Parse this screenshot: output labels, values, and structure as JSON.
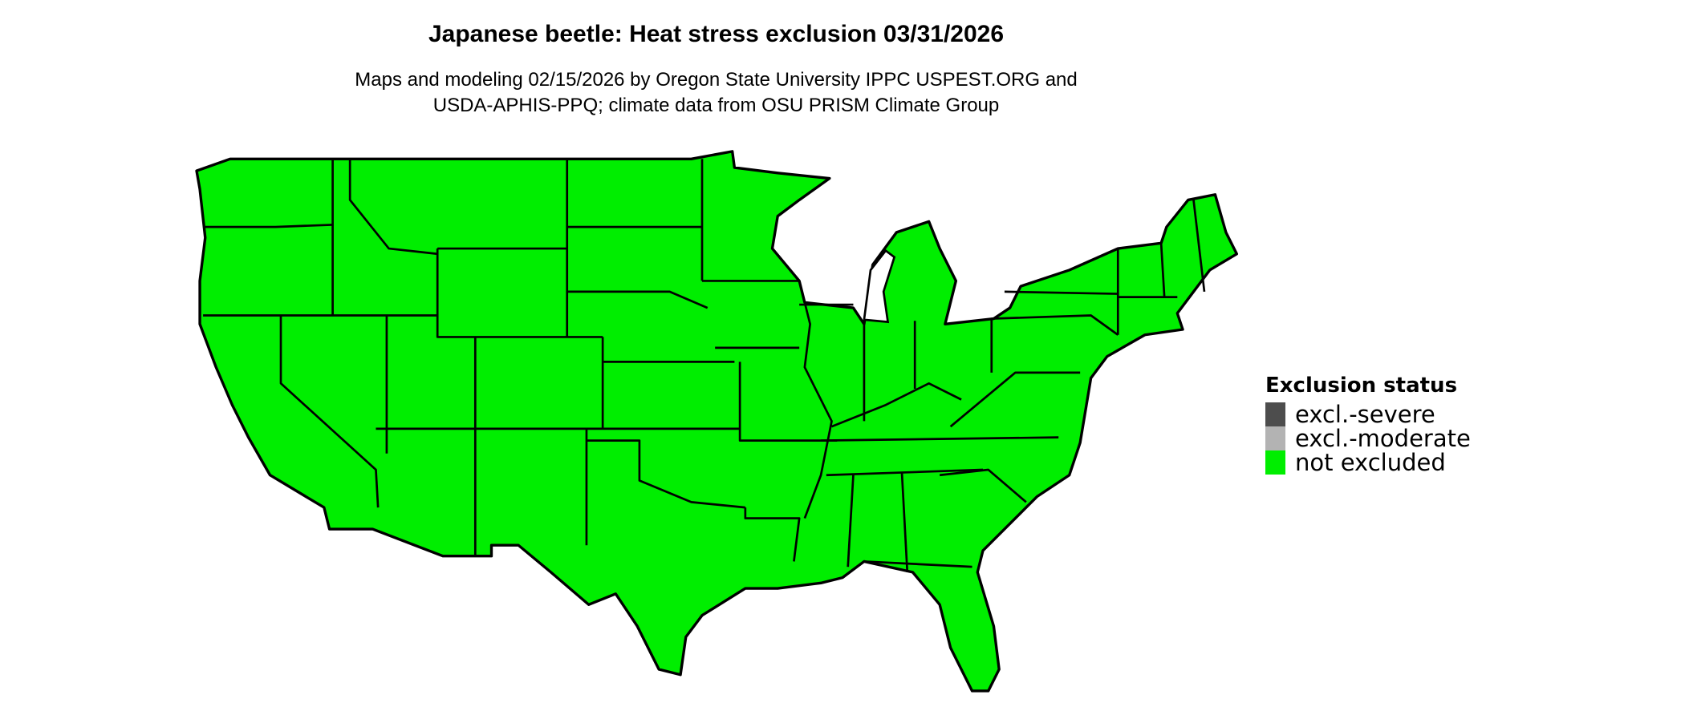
{
  "title": "Japanese beetle: Heat stress exclusion 03/31/2026",
  "subtitle_lines": [
    "Maps and modeling 02/15/2026 by Oregon State University IPPC USPEST.ORG and",
    "USDA-APHIS-PPQ; climate data from OSU PRISM Climate Group"
  ],
  "map": {
    "region": "Contiguous United States",
    "fill_color": "#00EE00",
    "border_color": "#000000",
    "status_shown": "not excluded"
  },
  "legend": {
    "title": "Exclusion status",
    "items": [
      {
        "label": "excl.-severe",
        "color": "#4D4D4D"
      },
      {
        "label": "excl.-moderate",
        "color": "#B3B3B3"
      },
      {
        "label": "not excluded",
        "color": "#00EE00"
      }
    ]
  }
}
